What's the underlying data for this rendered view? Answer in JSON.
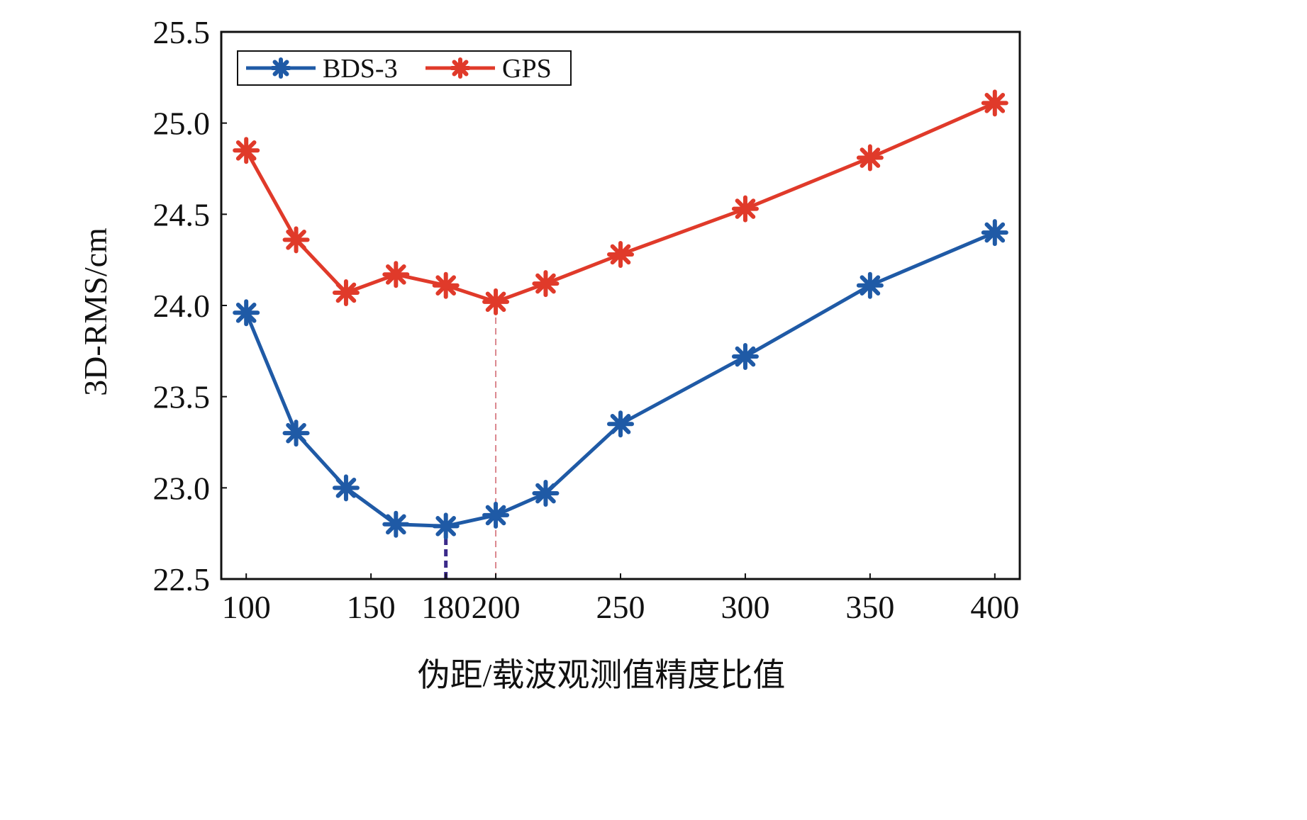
{
  "chart_data": {
    "type": "line",
    "title": "",
    "xlabel": "伪距/载波观测值精度比值",
    "ylabel": "3D-RMS/cm",
    "x": [
      100,
      120,
      140,
      160,
      180,
      200,
      220,
      250,
      300,
      350,
      400
    ],
    "xticks": [
      100,
      150,
      180,
      200,
      250,
      300,
      350,
      400
    ],
    "xtick_labels": [
      "100",
      "150",
      "180",
      "200",
      "250",
      "300",
      "350",
      "400"
    ],
    "yticks": [
      22.5,
      23.0,
      23.5,
      24.0,
      24.5,
      25.0,
      25.5
    ],
    "ytick_labels": [
      "22.5",
      "23.0",
      "23.5",
      "24.0",
      "24.5",
      "25.0",
      "25.5"
    ],
    "xlim": [
      90,
      410
    ],
    "ylim": [
      22.5,
      25.5
    ],
    "grid": false,
    "legend_position": "top-left",
    "series": [
      {
        "name": "BDS-3",
        "color": "#1f5aa6",
        "marker": "asterisk",
        "values": [
          23.96,
          23.3,
          23.0,
          22.8,
          22.79,
          22.85,
          22.97,
          23.35,
          23.72,
          24.11,
          24.4
        ]
      },
      {
        "name": "GPS",
        "color": "#e03a2a",
        "marker": "asterisk",
        "values": [
          24.85,
          24.36,
          24.07,
          24.17,
          24.11,
          24.02,
          24.12,
          24.28,
          24.53,
          24.81,
          25.11
        ]
      }
    ],
    "reference_lines": [
      {
        "x": 180,
        "series": "BDS-3",
        "style": "dashed",
        "color": "#3b2a8a"
      },
      {
        "x": 200,
        "series": "GPS",
        "style": "dashed",
        "color": "#d0606a"
      }
    ]
  }
}
